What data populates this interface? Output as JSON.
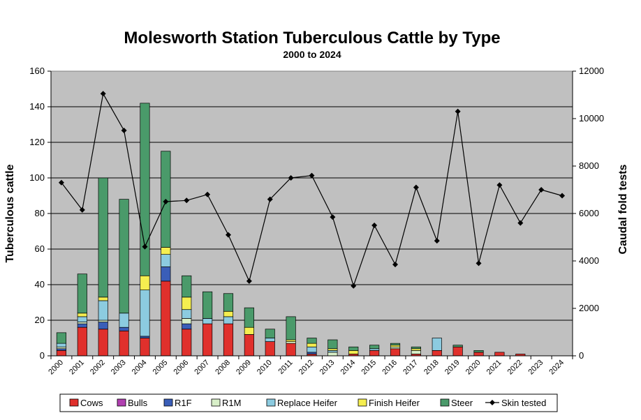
{
  "chart_data": {
    "type": "bar",
    "stacked": true,
    "title": "Molesworth Station Tuberculous Cattle by Type",
    "subtitle": "2000 to 2024",
    "ylabel": "Tuberculous cattle",
    "y2label": "Caudal fold tests",
    "ylim": [
      0,
      160
    ],
    "yticks": [
      0,
      20,
      40,
      60,
      80,
      100,
      120,
      140,
      160
    ],
    "y2lim": [
      0,
      12000
    ],
    "y2ticks": [
      0,
      2000,
      4000,
      6000,
      8000,
      10000,
      12000
    ],
    "grid": true,
    "legend_position": "bottom",
    "categories": [
      "2000",
      "2001",
      "2002",
      "2003",
      "2004",
      "2005",
      "2006",
      "2007",
      "2008",
      "2009",
      "2010",
      "2011",
      "2012",
      "2013",
      "2014",
      "2015",
      "2016",
      "2017",
      "2018",
      "2019",
      "2020",
      "2021",
      "2022",
      "2023",
      "2024"
    ],
    "series": [
      {
        "name": "Cows",
        "color": "#e0302c",
        "values": [
          3,
          16,
          15,
          14,
          10,
          42,
          15,
          18,
          18,
          12,
          8,
          7,
          1,
          0,
          1,
          3,
          4,
          1,
          3,
          5,
          2,
          2,
          1,
          0,
          0
        ]
      },
      {
        "name": "Bulls",
        "color": "#b040b0",
        "values": [
          0,
          0,
          0,
          0,
          0,
          0,
          0,
          0,
          0,
          0,
          0,
          0,
          0,
          0,
          0,
          0,
          0,
          0,
          0,
          0,
          0,
          0,
          0,
          0,
          0
        ]
      },
      {
        "name": "R1F",
        "color": "#3a5eb8",
        "values": [
          1,
          2,
          4,
          2,
          1,
          8,
          3,
          0,
          0,
          0,
          0,
          0,
          1,
          0,
          0,
          0,
          0,
          0,
          0,
          0,
          0,
          0,
          0,
          0,
          0
        ]
      },
      {
        "name": "R1M",
        "color": "#d8efc8",
        "values": [
          1,
          1,
          1,
          0,
          0,
          0,
          3,
          0,
          0,
          0,
          0,
          1,
          0,
          2,
          0,
          0,
          1,
          2,
          0,
          0,
          0,
          0,
          0,
          0,
          0
        ]
      },
      {
        "name": "Replace Heifer",
        "color": "#8ccbe0",
        "values": [
          2,
          3,
          11,
          8,
          26,
          7,
          5,
          3,
          4,
          0,
          2,
          0,
          3,
          1,
          0,
          1,
          0,
          0,
          7,
          0,
          0,
          0,
          0,
          0,
          0
        ]
      },
      {
        "name": "Finish Heifer",
        "color": "#f5ee50",
        "values": [
          0,
          2,
          2,
          0,
          8,
          4,
          7,
          0,
          3,
          4,
          0,
          1,
          2,
          1,
          2,
          0,
          1,
          1,
          0,
          0,
          0,
          0,
          0,
          0,
          0
        ]
      },
      {
        "name": "Steer",
        "color": "#4a9a6a",
        "values": [
          6,
          22,
          67,
          64,
          97,
          54,
          12,
          15,
          10,
          11,
          5,
          13,
          3,
          5,
          2,
          2,
          1,
          1,
          0,
          1,
          1,
          0,
          0,
          0,
          0
        ]
      }
    ],
    "line_series": {
      "name": "Skin tested",
      "axis": "right",
      "color": "#000000",
      "marker": "diamond",
      "values": [
        7300,
        6150,
        11050,
        9500,
        4600,
        6500,
        6550,
        6800,
        5100,
        3150,
        6600,
        7500,
        7600,
        5850,
        2950,
        5500,
        3850,
        7100,
        4850,
        10300,
        3900,
        7200,
        5600,
        7000,
        6750
      ]
    },
    "legend": [
      "Cows",
      "Bulls",
      "R1F",
      "R1M",
      "Replace Heifer",
      "Finish Heifer",
      "Steer",
      "Skin tested"
    ]
  }
}
